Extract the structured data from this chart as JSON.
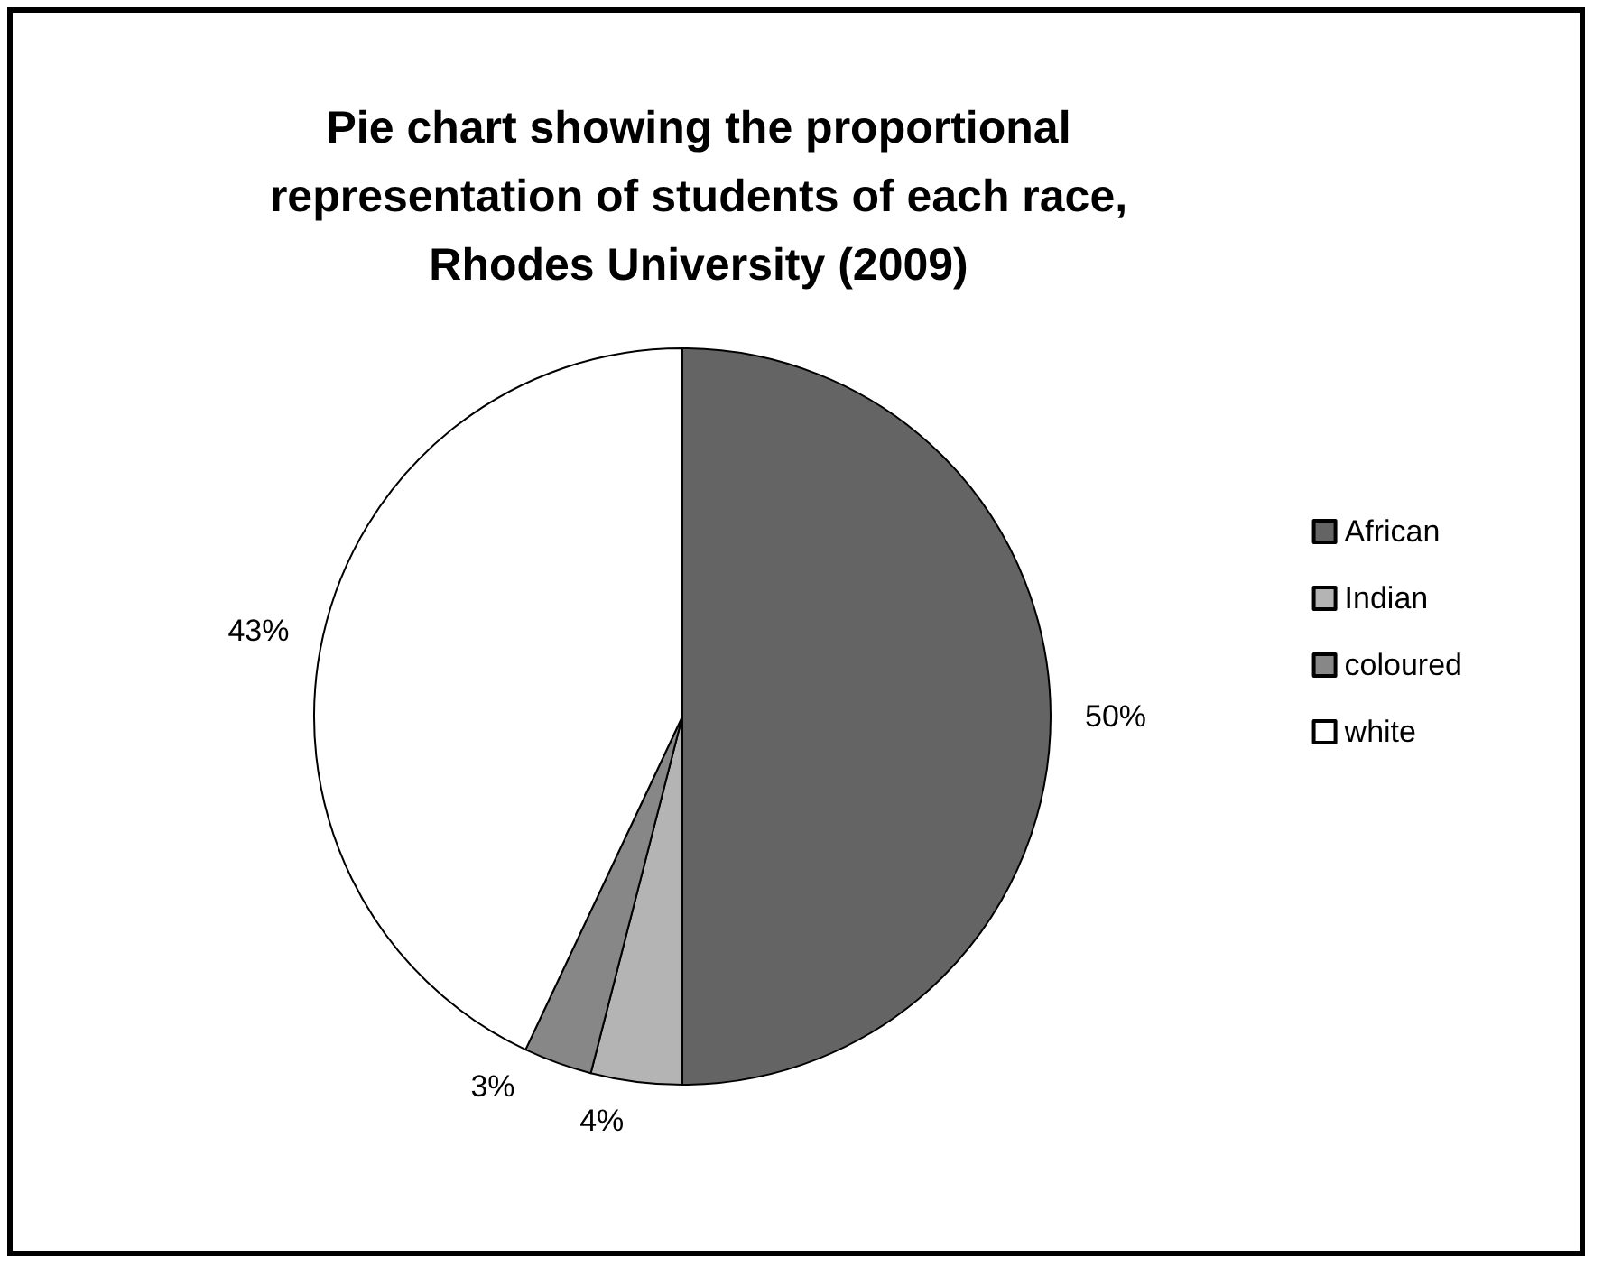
{
  "chart_data": {
    "type": "pie",
    "title": "Pie chart showing the proportional\nrepresentation of students of each race,\nRhodes University (2009)",
    "categories": [
      "African",
      "Indian",
      "coloured",
      "white"
    ],
    "values": [
      50,
      4,
      3,
      43
    ],
    "colors": [
      "#646464",
      "#b4b4b4",
      "#878787",
      "#ffffff"
    ],
    "value_labels": [
      "50%",
      "4%",
      "3%",
      "43%"
    ],
    "legend": "right"
  }
}
